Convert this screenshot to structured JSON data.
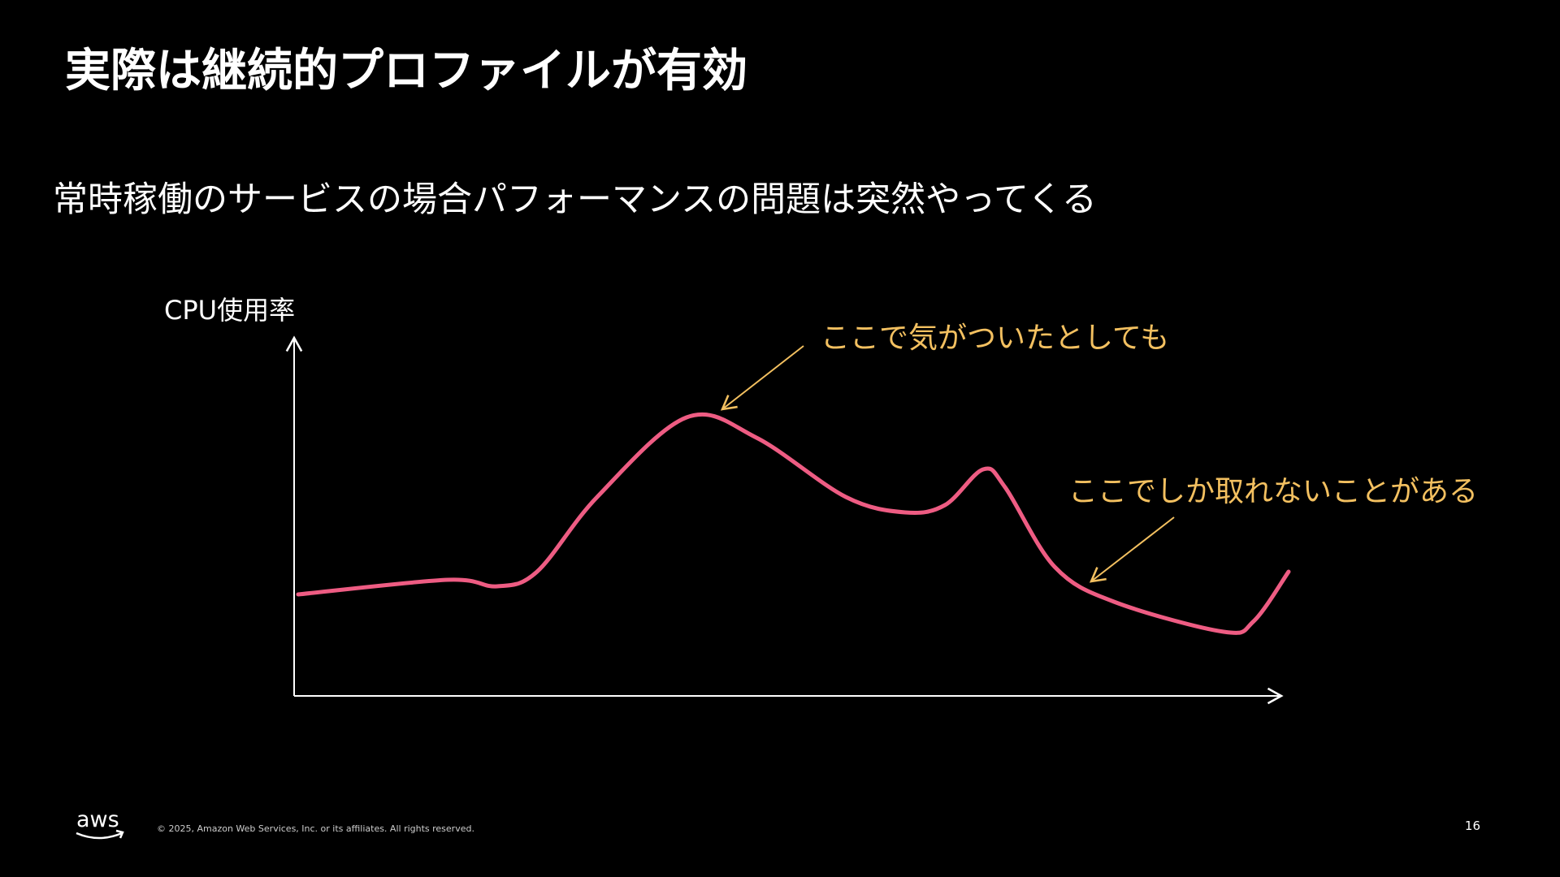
{
  "title": "実際は継続的プロファイルが有効",
  "subtitle": "常時稼働のサービスの場合パフォーマンスの問題は突然やってくる",
  "diagram": {
    "axis_label": "CPU使用率",
    "annotations": [
      "ここで気がついたとしても",
      "ここでしか取れないことがある"
    ]
  },
  "footer": {
    "logo": "aws",
    "copyright": "© 2025, Amazon Web Services, Inc. or its affiliates. All rights reserved.",
    "page_number": "16"
  }
}
